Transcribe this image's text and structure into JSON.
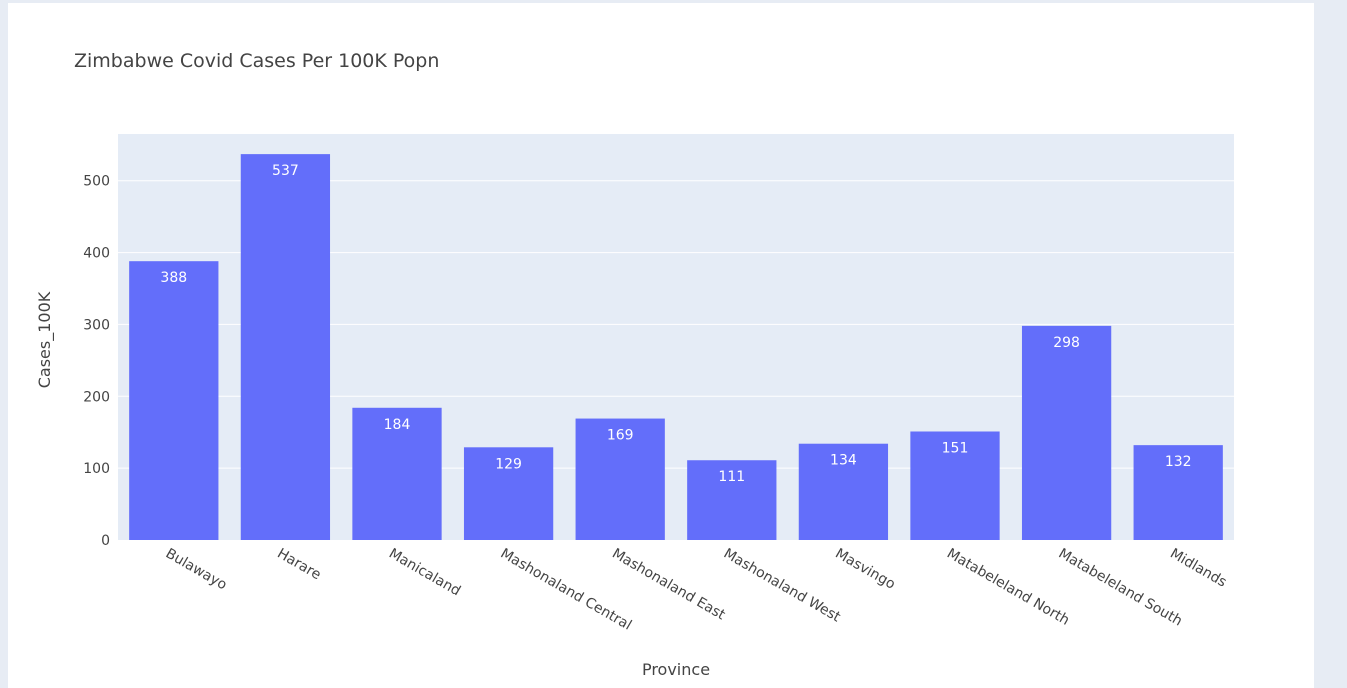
{
  "chart_data": {
    "type": "bar",
    "title": "Zimbabwe Covid Cases Per 100K Popn",
    "xlabel": "Province",
    "ylabel": "Cases_100K",
    "categories": [
      "Bulawayo",
      "Harare",
      "Manicaland",
      "Mashonaland Central",
      "Mashonaland East",
      "Mashonaland West",
      "Masvingo",
      "Matabeleland North",
      "Matabeleland South",
      "Midlands"
    ],
    "values": [
      388,
      537,
      184,
      129,
      169,
      111,
      134,
      151,
      298,
      132
    ],
    "ylim": [
      0,
      565
    ],
    "yticks": [
      0,
      100,
      200,
      300,
      400,
      500
    ],
    "grid": true,
    "bar_color": "#636efa",
    "plot_bg": "#e5ecf6",
    "page_bg": "#e7ecf4"
  }
}
